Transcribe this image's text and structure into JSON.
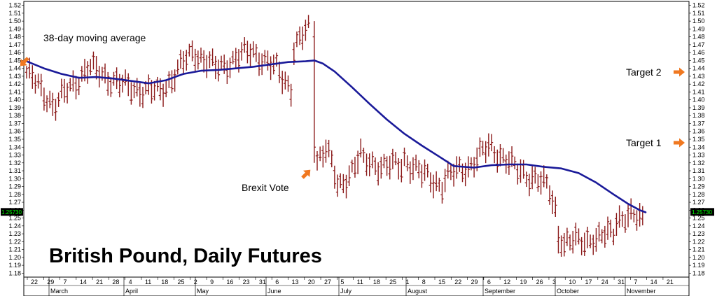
{
  "chart_data": {
    "type": "line",
    "title": "British Pound, Daily Futures",
    "ylim": [
      1.175,
      1.525
    ],
    "y_ticks": [
      "1.52",
      "1.51",
      "1.50",
      "1.49",
      "1.48",
      "1.47",
      "1.46",
      "1.45",
      "1.44",
      "1.43",
      "1.42",
      "1.41",
      "1.40",
      "1.39",
      "1.38",
      "1.37",
      "1.36",
      "1.35",
      "1.34",
      "1.33",
      "1.32",
      "1.31",
      "1.30",
      "1.29",
      "1.28",
      "1.27",
      "1.26",
      "1.25",
      "1.24",
      "1.23",
      "1.22",
      "1.21",
      "1.20",
      "1.19",
      "1.18"
    ],
    "x_day_labels": [
      "22",
      "29",
      "7",
      "14",
      "21",
      "28",
      "4",
      "11",
      "18",
      "25",
      "2",
      "9",
      "16",
      "23",
      "31",
      "6",
      "13",
      "20",
      "27",
      "5",
      "11",
      "18",
      "25",
      "1",
      "8",
      "15",
      "22",
      "29",
      "6",
      "12",
      "19",
      "26",
      "3",
      "10",
      "17",
      "24",
      "31",
      "7",
      "14",
      "21"
    ],
    "x_month_labels": [
      "March",
      "April",
      "May",
      "June",
      "July",
      "August",
      "September",
      "October",
      "November"
    ],
    "last_price_label": "1.25730",
    "last_price": 1.2573,
    "colors": {
      "bars": "#8b1a1a",
      "moving_average": "#1a1a99",
      "arrows": "#f07820",
      "price_tag": "#000000",
      "price_text": "#00ff00"
    },
    "annotations": [
      {
        "text": "38-day moving average",
        "arrow": "down-left"
      },
      {
        "text": "Brexit Vote",
        "arrow": "up-right"
      },
      {
        "text": "Target 2",
        "arrow": "right"
      },
      {
        "text": "Target 1",
        "arrow": "right"
      }
    ],
    "moving_average": [
      [
        0,
        1.449
      ],
      [
        6,
        1.44
      ],
      [
        12,
        1.433
      ],
      [
        18,
        1.428
      ],
      [
        24,
        1.429
      ],
      [
        30,
        1.427
      ],
      [
        36,
        1.424
      ],
      [
        42,
        1.421
      ],
      [
        48,
        1.425
      ],
      [
        54,
        1.433
      ],
      [
        60,
        1.437
      ],
      [
        66,
        1.438
      ],
      [
        72,
        1.44
      ],
      [
        78,
        1.442
      ],
      [
        84,
        1.445
      ],
      [
        90,
        1.448
      ],
      [
        96,
        1.449
      ],
      [
        99,
        1.45
      ],
      [
        102,
        1.446
      ],
      [
        106,
        1.436
      ],
      [
        112,
        1.416
      ],
      [
        118,
        1.395
      ],
      [
        124,
        1.375
      ],
      [
        130,
        1.357
      ],
      [
        136,
        1.342
      ],
      [
        142,
        1.328
      ],
      [
        147,
        1.316
      ],
      [
        154,
        1.314
      ],
      [
        160,
        1.317
      ],
      [
        166,
        1.318
      ],
      [
        172,
        1.318
      ],
      [
        178,
        1.315
      ],
      [
        184,
        1.313
      ],
      [
        190,
        1.307
      ],
      [
        196,
        1.295
      ],
      [
        202,
        1.28
      ],
      [
        207,
        1.268
      ],
      [
        211,
        1.26
      ],
      [
        213,
        1.2573
      ]
    ],
    "bar_segments": [
      {
        "start": 0,
        "end": 10,
        "from": 1.435,
        "to": 1.395
      },
      {
        "start": 10,
        "end": 22,
        "from": 1.395,
        "to": 1.44
      },
      {
        "start": 22,
        "end": 36,
        "from": 1.44,
        "to": 1.415
      },
      {
        "start": 36,
        "end": 46,
        "from": 1.415,
        "to": 1.41
      },
      {
        "start": 46,
        "end": 58,
        "from": 1.41,
        "to": 1.46
      },
      {
        "start": 58,
        "end": 66,
        "from": 1.46,
        "to": 1.44
      },
      {
        "start": 66,
        "end": 78,
        "from": 1.44,
        "to": 1.462
      },
      {
        "start": 78,
        "end": 86,
        "from": 1.462,
        "to": 1.44
      },
      {
        "start": 86,
        "end": 92,
        "from": 1.44,
        "to": 1.415
      },
      {
        "start": 92,
        "end": 98,
        "from": 1.465,
        "to": 1.49
      },
      {
        "start": 99,
        "end": 100,
        "from": 1.36,
        "to": 1.36
      },
      {
        "start": 100,
        "end": 104,
        "from": 1.325,
        "to": 1.34
      },
      {
        "start": 104,
        "end": 108,
        "from": 1.33,
        "to": 1.29
      },
      {
        "start": 108,
        "end": 116,
        "from": 1.29,
        "to": 1.33
      },
      {
        "start": 116,
        "end": 130,
        "from": 1.32,
        "to": 1.315
      },
      {
        "start": 130,
        "end": 136,
        "from": 1.325,
        "to": 1.31
      },
      {
        "start": 136,
        "end": 144,
        "from": 1.305,
        "to": 1.292
      },
      {
        "start": 144,
        "end": 152,
        "from": 1.3,
        "to": 1.315
      },
      {
        "start": 152,
        "end": 160,
        "from": 1.315,
        "to": 1.34
      },
      {
        "start": 160,
        "end": 170,
        "from": 1.34,
        "to": 1.31
      },
      {
        "start": 170,
        "end": 180,
        "from": 1.31,
        "to": 1.29
      },
      {
        "start": 180,
        "end": 184,
        "from": 1.285,
        "to": 1.25
      },
      {
        "start": 184,
        "end": 186,
        "from": 1.225,
        "to": 1.215
      },
      {
        "start": 186,
        "end": 196,
        "from": 1.218,
        "to": 1.225
      },
      {
        "start": 196,
        "end": 203,
        "from": 1.22,
        "to": 1.235
      },
      {
        "start": 203,
        "end": 213,
        "from": 1.25,
        "to": 1.25
      }
    ],
    "spike_bars": [
      {
        "i": 99,
        "high": 1.5,
        "low": 1.32
      },
      {
        "i": 183,
        "high": 1.24,
        "low": 1.205
      }
    ]
  }
}
